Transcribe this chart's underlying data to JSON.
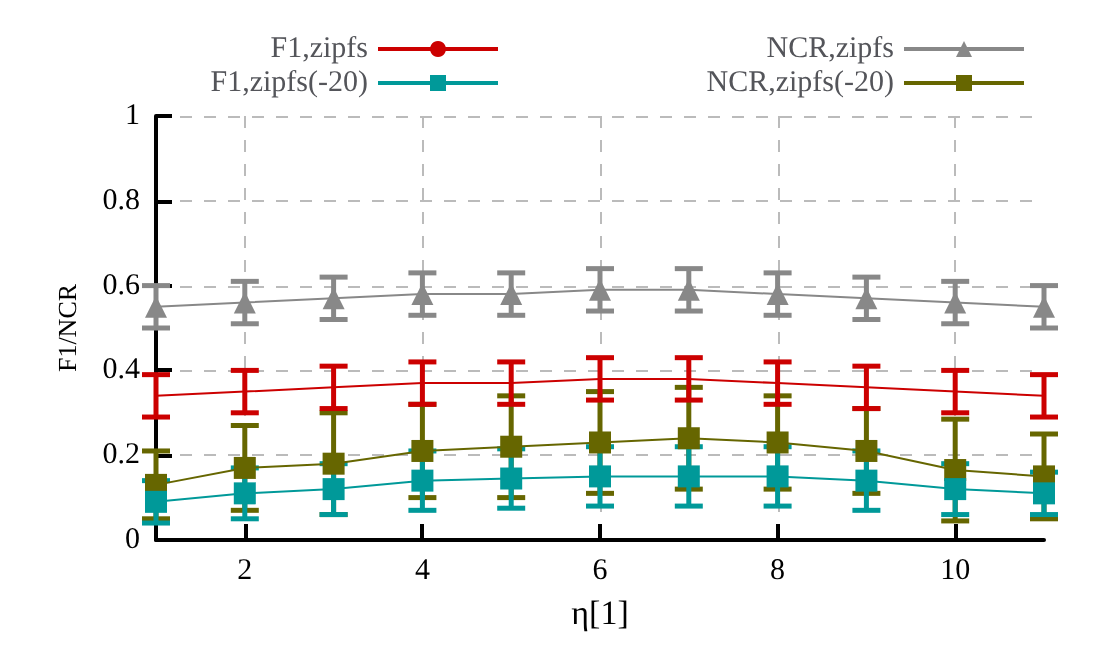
{
  "chart_data": {
    "type": "line",
    "xlabel": "η[1]",
    "ylabel": "F1/NCR",
    "x": [
      1,
      2,
      3,
      4,
      5,
      6,
      7,
      8,
      9,
      10,
      11
    ],
    "xlim": [
      1,
      11
    ],
    "xticks": [
      2,
      4,
      6,
      8,
      10
    ],
    "ylim": [
      0,
      1
    ],
    "yticks": [
      0,
      0.2,
      0.4,
      0.6,
      0.8,
      1
    ],
    "grid": true,
    "legend": "top",
    "series": [
      {
        "name": "F1,zipfs",
        "color": "#cc0000",
        "marker": "none",
        "values": [
          0.34,
          0.35,
          0.36,
          0.37,
          0.37,
          0.38,
          0.38,
          0.37,
          0.36,
          0.35,
          0.34
        ],
        "errors": [
          0.05,
          0.05,
          0.05,
          0.05,
          0.05,
          0.05,
          0.05,
          0.05,
          0.05,
          0.05,
          0.05
        ]
      },
      {
        "name": "F1,zipfs(-20)",
        "color": "#009999",
        "marker": "square",
        "values": [
          0.09,
          0.11,
          0.12,
          0.14,
          0.145,
          0.15,
          0.15,
          0.15,
          0.14,
          0.12,
          0.11
        ],
        "errors": [
          0.05,
          0.06,
          0.06,
          0.07,
          0.07,
          0.07,
          0.07,
          0.07,
          0.07,
          0.06,
          0.05
        ]
      },
      {
        "name": "NCR,zipfs",
        "color": "#888888",
        "marker": "triangle",
        "values": [
          0.55,
          0.56,
          0.57,
          0.58,
          0.58,
          0.59,
          0.59,
          0.58,
          0.57,
          0.56,
          0.55
        ],
        "errors": [
          0.05,
          0.05,
          0.05,
          0.05,
          0.05,
          0.05,
          0.05,
          0.05,
          0.05,
          0.05,
          0.05
        ]
      },
      {
        "name": "NCR,zipfs(-20)",
        "color": "#666600",
        "marker": "square",
        "values": [
          0.13,
          0.17,
          0.18,
          0.21,
          0.22,
          0.23,
          0.24,
          0.23,
          0.21,
          0.165,
          0.15
        ],
        "errors": [
          0.08,
          0.1,
          0.12,
          0.11,
          0.12,
          0.12,
          0.12,
          0.11,
          0.1,
          0.12,
          0.1
        ]
      }
    ]
  }
}
